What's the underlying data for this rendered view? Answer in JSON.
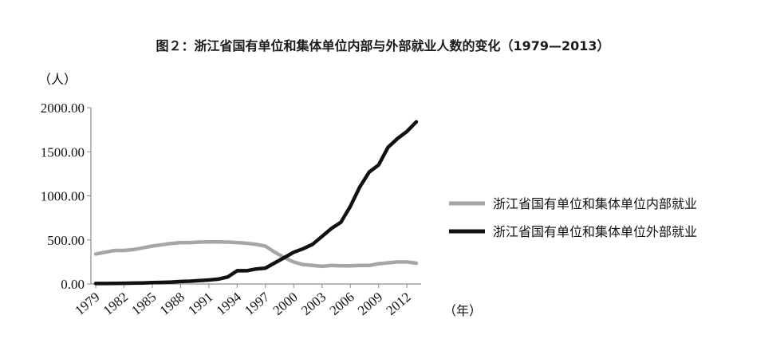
{
  "chart_data": {
    "type": "line",
    "title": "图２：浙江省国有单位和集体单位内部与外部就业人数的变化（1979—2013）",
    "ylabel": "（人）",
    "xlabel": "（年）",
    "ylim": [
      0,
      2000
    ],
    "yticks": [
      "2000.00",
      "1500.00",
      "1000.00",
      "500.00",
      "0.00"
    ],
    "ytick_values": [
      2000,
      1500,
      1000,
      500,
      0
    ],
    "x": [
      1979,
      1980,
      1981,
      1982,
      1983,
      1984,
      1985,
      1986,
      1987,
      1988,
      1989,
      1990,
      1991,
      1992,
      1993,
      1994,
      1995,
      1996,
      1997,
      1998,
      1999,
      2000,
      2001,
      2002,
      2003,
      2004,
      2005,
      2006,
      2007,
      2008,
      2009,
      2010,
      2011,
      2012,
      2013
    ],
    "xticks": [
      "1979",
      "1982",
      "1985",
      "1988",
      "1991",
      "1994",
      "1997",
      "2000",
      "2003",
      "2006",
      "2009",
      "2012"
    ],
    "legend_position": "right",
    "grid": false,
    "series": [
      {
        "name": "浙江省国有单位和集体单位内部就业",
        "color": "#a6a6a6",
        "values": [
          340,
          360,
          380,
          380,
          390,
          410,
          430,
          445,
          460,
          470,
          470,
          475,
          478,
          478,
          475,
          470,
          462,
          450,
          430,
          360,
          300,
          250,
          220,
          210,
          200,
          210,
          205,
          205,
          210,
          210,
          230,
          240,
          250,
          250,
          235
        ]
      },
      {
        "name": "浙江省国有单位和集体单位外部就业",
        "color": "#111111",
        "values": [
          5,
          5,
          6,
          8,
          10,
          12,
          15,
          18,
          22,
          28,
          32,
          38,
          45,
          55,
          80,
          150,
          150,
          170,
          180,
          240,
          300,
          360,
          400,
          450,
          540,
          630,
          700,
          880,
          1100,
          1270,
          1350,
          1550,
          1650,
          1730,
          1840
        ]
      }
    ]
  }
}
